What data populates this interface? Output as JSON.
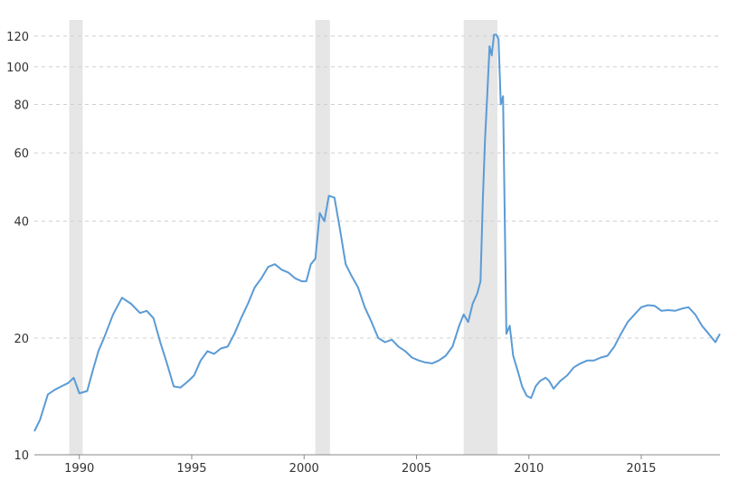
{
  "chart_data": {
    "type": "line",
    "title": "",
    "xlabel": "",
    "ylabel": "",
    "y_scale": "log",
    "xlim": [
      1988.0,
      2018.5
    ],
    "ylim": [
      10,
      130
    ],
    "y_ticks": [
      10,
      20,
      40,
      60,
      80,
      100,
      120
    ],
    "y_tick_labels": [
      "10",
      "20",
      "40",
      "60",
      "80",
      "100",
      "120"
    ],
    "x_ticks": [
      1990,
      1995,
      2000,
      2005,
      2010,
      2015
    ],
    "x_tick_labels": [
      "1990",
      "1995",
      "2000",
      "2005",
      "2010",
      "2015"
    ],
    "grid": "horizontal-dashed",
    "legend": "none",
    "line_color": "#5b9bd5",
    "recession_color": "#e6e6e6",
    "recessions": [
      {
        "start": 1989.55,
        "end": 1990.15
      },
      {
        "start": 2000.5,
        "end": 2001.15
      },
      {
        "start": 2007.1,
        "end": 2008.6
      }
    ],
    "series": [
      {
        "x": [
          1988.0,
          1988.25,
          1988.6,
          1988.9,
          1989.2,
          1989.5,
          1989.75,
          1990.0,
          1990.35,
          1990.6,
          1990.85,
          1991.1,
          1991.5,
          1991.9,
          1992.3,
          1992.7,
          1993.0,
          1993.3,
          1993.6,
          1993.9,
          1994.2,
          1994.5,
          1994.8,
          1995.1,
          1995.4,
          1995.7,
          1996.0,
          1996.3,
          1996.6,
          1996.9,
          1997.2,
          1997.5,
          1997.8,
          1998.1,
          1998.4,
          1998.7,
          1999.0,
          1999.3,
          1999.6,
          1999.9,
          2000.1,
          2000.3,
          2000.5,
          2000.7,
          2000.9,
          2001.1,
          2001.35,
          2001.6,
          2001.85,
          2002.1,
          2002.4,
          2002.7,
          2003.0,
          2003.3,
          2003.6,
          2003.9,
          2004.2,
          2004.5,
          2004.8,
          2005.1,
          2005.4,
          2005.7,
          2006.0,
          2006.3,
          2006.6,
          2006.9,
          2007.1,
          2007.3,
          2007.5,
          2007.7,
          2007.85,
          2007.95,
          2008.05,
          2008.15,
          2008.25,
          2008.35,
          2008.45,
          2008.55,
          2008.65,
          2008.75,
          2008.85,
          2009.0,
          2009.15,
          2009.3,
          2009.5,
          2009.7,
          2009.9,
          2010.1,
          2010.3,
          2010.5,
          2010.75,
          2010.9,
          2011.1,
          2011.4,
          2011.7,
          2012.0,
          2012.3,
          2012.6,
          2012.9,
          2013.2,
          2013.5,
          2013.8,
          2014.1,
          2014.4,
          2014.7,
          2015.0,
          2015.3,
          2015.6,
          2015.9,
          2016.2,
          2016.5,
          2016.8,
          2017.1,
          2017.4,
          2017.7,
          2018.0,
          2018.3,
          2018.5
        ],
        "values": [
          11.5,
          12.3,
          14.3,
          14.7,
          15.0,
          15.3,
          15.8,
          14.4,
          14.6,
          16.5,
          18.5,
          20.0,
          23.0,
          25.4,
          24.5,
          23.2,
          23.5,
          22.5,
          19.5,
          17.2,
          15.0,
          14.9,
          15.4,
          16.0,
          17.5,
          18.5,
          18.2,
          18.8,
          19.0,
          20.5,
          22.5,
          24.5,
          27.0,
          28.5,
          30.5,
          31.0,
          30.0,
          29.5,
          28.5,
          28.0,
          28.0,
          31.0,
          32.0,
          42.0,
          40.0,
          46.5,
          46.0,
          38.0,
          31.0,
          29.0,
          27.0,
          24.0,
          22.0,
          20.0,
          19.5,
          19.8,
          19.0,
          18.5,
          17.8,
          17.5,
          17.3,
          17.2,
          17.5,
          18.0,
          19.0,
          21.5,
          23.0,
          22.0,
          24.5,
          26.0,
          28.0,
          45.0,
          65.0,
          85.0,
          113.0,
          107.0,
          121.0,
          121.0,
          118.0,
          80.0,
          84.0,
          20.5,
          21.5,
          18.0,
          16.5,
          15.0,
          14.2,
          14.0,
          15.0,
          15.5,
          15.8,
          15.5,
          14.8,
          15.5,
          16.0,
          16.8,
          17.2,
          17.5,
          17.5,
          17.8,
          18.0,
          19.0,
          20.5,
          22.0,
          23.0,
          24.0,
          24.3,
          24.2,
          23.5,
          23.6,
          23.5,
          23.8,
          24.0,
          23.0,
          21.5,
          20.5,
          19.5,
          20.5
        ]
      }
    ]
  }
}
